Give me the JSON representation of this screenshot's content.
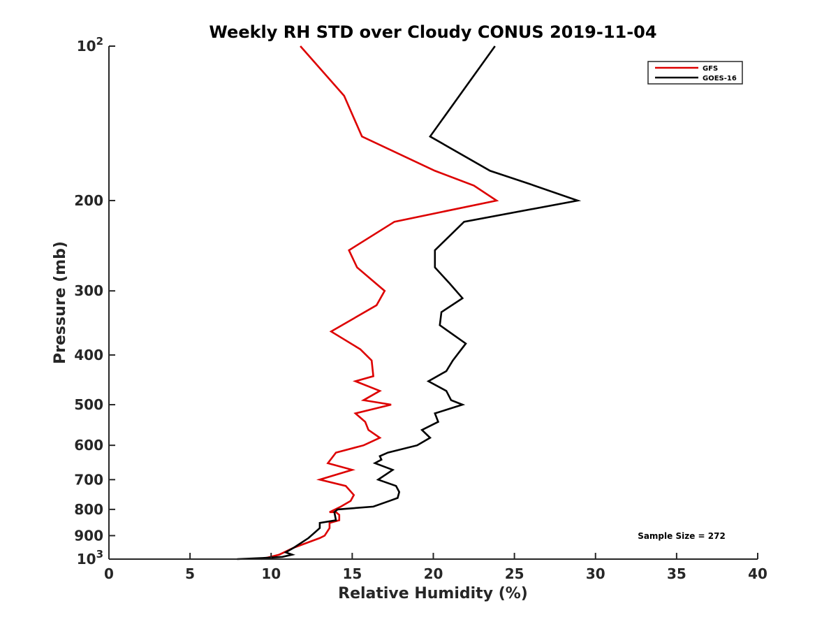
{
  "chart_data": {
    "type": "line",
    "title": "Weekly RH STD over Cloudy CONUS 2019-11-04",
    "xlabel": "Relative Humidity (%)",
    "ylabel": "Pressure (mb)",
    "xlim": [
      0,
      40
    ],
    "ylim": [
      100,
      1000
    ],
    "y_scale": "log",
    "y_reversed": true,
    "x_ticks": [
      "0",
      "5",
      "10",
      "15",
      "20",
      "25",
      "30",
      "35",
      "40"
    ],
    "x_tick_values": [
      0,
      5,
      10,
      15,
      20,
      25,
      30,
      35,
      40
    ],
    "y_tick_values": [
      100,
      200,
      300,
      400,
      500,
      600,
      700,
      800,
      900,
      1000
    ],
    "y_ticks": [
      {
        "base": "10",
        "exp": "2"
      },
      {
        "base": "200"
      },
      {
        "base": "300"
      },
      {
        "base": "400"
      },
      {
        "base": "500"
      },
      {
        "base": "600"
      },
      {
        "base": "700"
      },
      {
        "base": "800"
      },
      {
        "base": "900"
      },
      {
        "base": "10",
        "exp": "3"
      }
    ],
    "grid": false,
    "legend_position": "top-right",
    "annotation": "Sample Size = 272",
    "series": [
      {
        "name": "GFS",
        "color": "#dd0000",
        "points": [
          [
            11.8,
            100
          ],
          [
            14.5,
            125
          ],
          [
            15.6,
            150
          ],
          [
            20.1,
            175
          ],
          [
            22.5,
            187
          ],
          [
            23.9,
            200
          ],
          [
            17.6,
            220
          ],
          [
            14.8,
            250
          ],
          [
            15.3,
            270
          ],
          [
            17.0,
            300
          ],
          [
            16.5,
            320
          ],
          [
            13.7,
            360
          ],
          [
            15.5,
            390
          ],
          [
            16.2,
            410
          ],
          [
            16.3,
            440
          ],
          [
            15.2,
            450
          ],
          [
            16.7,
            470
          ],
          [
            15.7,
            490
          ],
          [
            17.4,
            500
          ],
          [
            15.2,
            520
          ],
          [
            15.8,
            540
          ],
          [
            16.0,
            560
          ],
          [
            16.7,
            580
          ],
          [
            15.7,
            600
          ],
          [
            14.0,
            620
          ],
          [
            13.5,
            650
          ],
          [
            15.0,
            670
          ],
          [
            13.0,
            700
          ],
          [
            14.6,
            720
          ],
          [
            15.1,
            750
          ],
          [
            14.9,
            770
          ],
          [
            14.3,
            790
          ],
          [
            13.6,
            810
          ],
          [
            14.0,
            810
          ],
          [
            14.2,
            820
          ],
          [
            14.2,
            840
          ],
          [
            13.6,
            850
          ],
          [
            13.6,
            870
          ],
          [
            13.3,
            900
          ],
          [
            13.0,
            910
          ],
          [
            11.4,
            950
          ],
          [
            10.5,
            980
          ],
          [
            9.4,
            1000
          ]
        ]
      },
      {
        "name": "GOES-16",
        "color": "#000000",
        "points": [
          [
            23.8,
            100
          ],
          [
            19.8,
            150
          ],
          [
            23.5,
            175
          ],
          [
            25.8,
            185
          ],
          [
            28.9,
            200
          ],
          [
            21.9,
            220
          ],
          [
            20.1,
            250
          ],
          [
            20.1,
            270
          ],
          [
            21.0,
            290
          ],
          [
            21.8,
            310
          ],
          [
            20.5,
            330
          ],
          [
            20.4,
            350
          ],
          [
            22.0,
            380
          ],
          [
            21.2,
            410
          ],
          [
            20.8,
            430
          ],
          [
            19.7,
            450
          ],
          [
            20.8,
            470
          ],
          [
            21.1,
            490
          ],
          [
            21.8,
            500
          ],
          [
            20.1,
            520
          ],
          [
            20.3,
            540
          ],
          [
            19.3,
            560
          ],
          [
            19.8,
            580
          ],
          [
            19.0,
            600
          ],
          [
            17.2,
            620
          ],
          [
            16.7,
            630
          ],
          [
            16.8,
            640
          ],
          [
            16.4,
            650
          ],
          [
            17.5,
            670
          ],
          [
            16.6,
            700
          ],
          [
            17.7,
            720
          ],
          [
            17.9,
            740
          ],
          [
            17.8,
            760
          ],
          [
            17.3,
            770
          ],
          [
            16.3,
            790
          ],
          [
            14.1,
            800
          ],
          [
            13.9,
            810
          ],
          [
            14.0,
            840
          ],
          [
            13.0,
            850
          ],
          [
            13.0,
            870
          ],
          [
            12.3,
            910
          ],
          [
            11.4,
            950
          ],
          [
            10.9,
            970
          ],
          [
            11.3,
            980
          ],
          [
            10.7,
            990
          ],
          [
            9.5,
            995
          ],
          [
            7.9,
            1000
          ]
        ]
      }
    ]
  }
}
